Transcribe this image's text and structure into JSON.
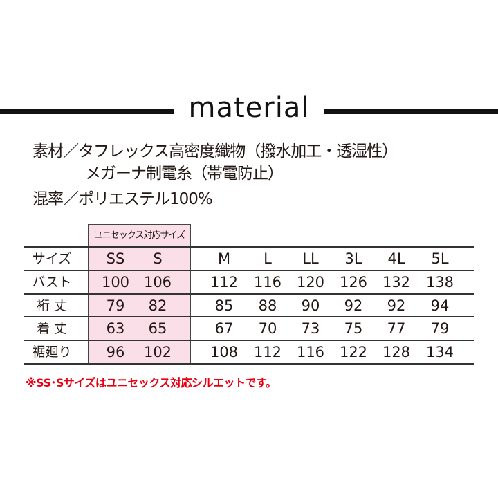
{
  "heading": "material",
  "material": {
    "line1": "素材／タフレックス高密度織物（撥水加工・透湿性）",
    "line2": "メガーナ制電糸（帯電防止）",
    "line3": "混率／ポリエステル100%"
  },
  "size_table": {
    "unisex_label": "ユニセックス対応サイズ",
    "header_label": "サイズ",
    "sizes": [
      "SS",
      "S",
      "M",
      "L",
      "LL",
      "3L",
      "4L",
      "5L"
    ],
    "rows": [
      {
        "label": "バスト",
        "values": [
          "100",
          "106",
          "112",
          "116",
          "120",
          "126",
          "132",
          "138"
        ]
      },
      {
        "label": "裄 丈",
        "values": [
          "79",
          "82",
          "85",
          "88",
          "90",
          "92",
          "92",
          "94"
        ]
      },
      {
        "label": "着 丈",
        "values": [
          "63",
          "65",
          "67",
          "70",
          "73",
          "75",
          "77",
          "79"
        ]
      },
      {
        "label": "裾廻り",
        "values": [
          "96",
          "102",
          "108",
          "112",
          "116",
          "122",
          "128",
          "134"
        ]
      }
    ],
    "highlight_color": "#fadfe9"
  },
  "note": "※SS･Sサイズはユニセックス対応シルエットです。",
  "note_color": "#e60012"
}
